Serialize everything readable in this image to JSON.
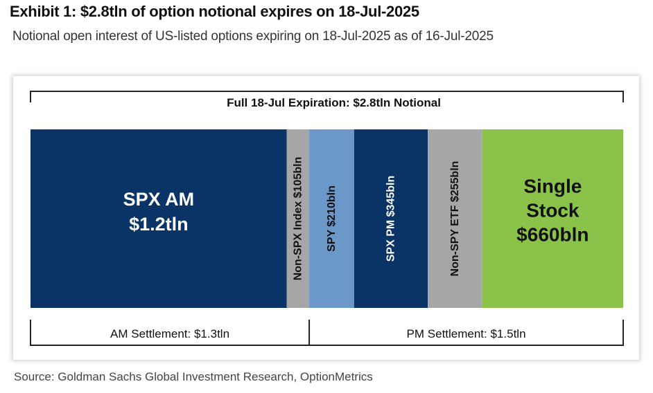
{
  "title": "Exhibit 1: $2.8tln of option notional expires on 18-Jul-2025",
  "subtitle": "Notional open interest of US-listed options expiring on 18-Jul-2025 as of 16-Jul-2025",
  "source": "Source: Goldman Sachs Global Investment Research, OptionMetrics",
  "chart_data": {
    "type": "bar",
    "subtype": "100%-stacked-horizontal (marimekko strip)",
    "unit": "USD billions notional",
    "total_label": "Full 18-Jul Expiration: $2.8tln Notional",
    "total": 2800,
    "categories": [
      "SPX AM",
      "Non-SPX Index",
      "SPY",
      "SPX PM",
      "Non-SPY ETF",
      "Single Stock"
    ],
    "values": [
      1200,
      105,
      210,
      345,
      255,
      660
    ],
    "segments": [
      {
        "name": "SPX AM",
        "value": 1200,
        "lines": [
          "SPX AM",
          "$1.2tln"
        ],
        "orientation": "horizontal",
        "color": "#0a3466",
        "text_color": "#ffffff"
      },
      {
        "name": "Non-SPX Index",
        "value": 105,
        "lines": [
          "Non-SPX Index $105bln"
        ],
        "orientation": "vertical",
        "color": "#a6a6a6",
        "text_color": "#111111"
      },
      {
        "name": "SPY",
        "value": 210,
        "lines": [
          "SPY $210bln"
        ],
        "orientation": "vertical",
        "color": "#6c97c9",
        "text_color": "#111111"
      },
      {
        "name": "SPX PM",
        "value": 345,
        "lines": [
          "SPX PM $345bln"
        ],
        "orientation": "vertical",
        "color": "#0a3466",
        "text_color": "#ffffff"
      },
      {
        "name": "Non-SPY ETF",
        "value": 255,
        "lines": [
          "Non-SPY ETF $255bln"
        ],
        "orientation": "vertical",
        "color": "#a6a6a6",
        "text_color": "#111111"
      },
      {
        "name": "Single Stock",
        "value": 660,
        "lines": [
          "Single",
          "Stock",
          "$660bln"
        ],
        "orientation": "horizontal",
        "color": "#8bc34a",
        "text_color": "#111111"
      }
    ],
    "groups": [
      {
        "label": "AM Settlement: $1.3tln",
        "value": 1300,
        "members": [
          "SPX AM",
          "Non-SPX Index"
        ]
      },
      {
        "label": "PM Settlement: $1.5tln",
        "value": 1500,
        "members": [
          "SPY",
          "SPX PM",
          "Non-SPY ETF",
          "Single Stock"
        ]
      }
    ]
  }
}
